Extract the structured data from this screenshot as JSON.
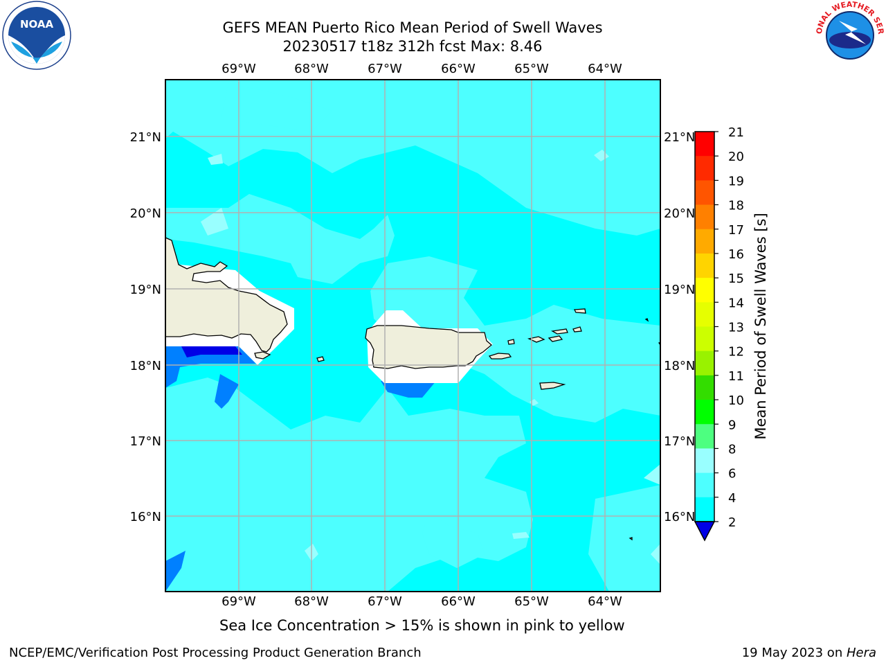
{
  "header": {
    "title_line1": "GEFS MEAN Puerto Rico Mean Period of Swell Waves",
    "title_line2": "20230517 t18z 312h fcst   Max: 8.46"
  },
  "map": {
    "lon_labels": [
      "69°W",
      "68°W",
      "67°W",
      "66°W",
      "65°W",
      "64°W"
    ],
    "lat_labels": [
      "21°N",
      "20°N",
      "19°N",
      "18°N",
      "17°N",
      "16°N"
    ],
    "colors": {
      "ocean_4_6": "#00ffff",
      "ocean_6_8": "#4dffff",
      "ocean_8_9": "#99ffff",
      "low_2_4": "#0080ff",
      "lowest": "#0000e6",
      "land": "#efefdc",
      "grid": "#b0b0b0"
    }
  },
  "colorbar": {
    "label": "Mean Period of Swell Waves [s]",
    "ticks": [
      "21",
      "20",
      "19",
      "18",
      "17",
      "16",
      "15",
      "14",
      "13",
      "12",
      "11",
      "10",
      "9",
      "8",
      "6",
      "4",
      "2"
    ],
    "colors": [
      "#ff0000",
      "#ff2a00",
      "#ff5500",
      "#ff8000",
      "#ffaa00",
      "#ffd400",
      "#ffff00",
      "#e6ff00",
      "#ccff00",
      "#99f200",
      "#33dd00",
      "#00ff00",
      "#4dff80",
      "#99ffff",
      "#4dffff",
      "#00ffff",
      "#0080ff"
    ],
    "extend_color": "#0000e6"
  },
  "footer": {
    "note": "Sea Ice Concentration > 15% is shown in pink to yellow",
    "credit": "NCEP/EMC/Verification Post Processing Product Generation Branch",
    "date_prefix": "19 May 2023 on ",
    "machine": "Hera"
  },
  "logos": {
    "noaa_text": "NOAA",
    "nws_text": "NATIONAL WEATHER SERVICE"
  }
}
